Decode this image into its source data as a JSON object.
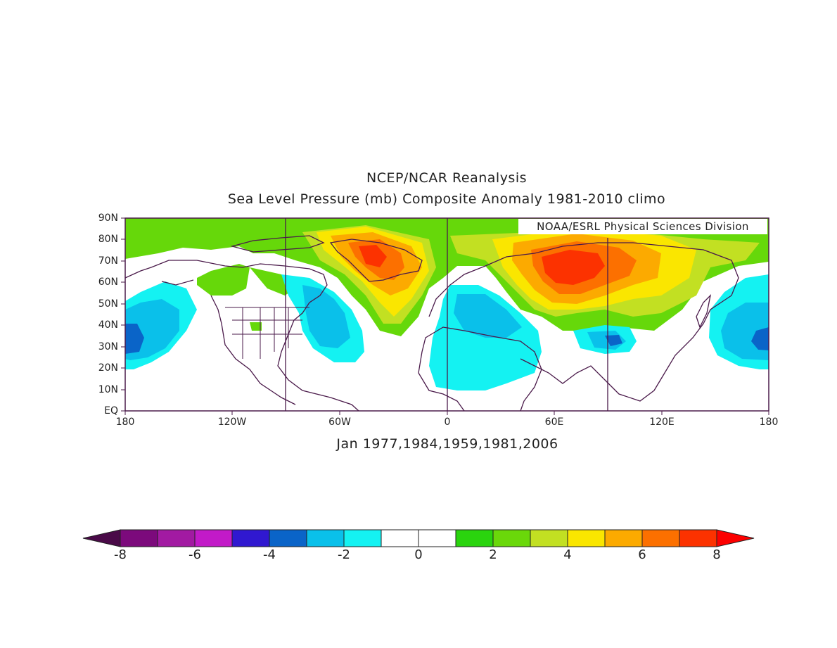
{
  "title_line1": "NCEP/NCAR Reanalysis",
  "title_line2": "Sea Level Pressure (mb) Composite Anomaly 1981-2010 climo",
  "credit": "NOAA/ESRL Physical Sciences Division",
  "subtitle": "Jan 1977,1984,1959,1981,2006",
  "y_labels": [
    "90N",
    "80N",
    "70N",
    "60N",
    "50N",
    "40N",
    "30N",
    "20N",
    "10N",
    "EQ"
  ],
  "x_labels": [
    "180",
    "120W",
    "60W",
    "0",
    "60E",
    "120E",
    "180"
  ],
  "colorbar": {
    "labels": [
      "-8",
      "-6",
      "-4",
      "-2",
      "0",
      "2",
      "4",
      "6",
      "8"
    ],
    "colors": [
      "#4a0a48",
      "#7c0a7c",
      "#a21aa2",
      "#c21ac8",
      "#3018d0",
      "#0a64c8",
      "#0ac0ea",
      "#14f2f2",
      "#ffffff",
      "#ffffff",
      "#2ad40e",
      "#6ad80a",
      "#c2e022",
      "#fae600",
      "#fcaa00",
      "#fc7000",
      "#fc3200",
      "#fc0000"
    ]
  },
  "fill_colors": {
    "light_green": "#66d80a",
    "green": "#2ad40e",
    "yellow_green": "#c2e022",
    "yellow": "#fae600",
    "orange": "#fcaa00",
    "dark_orange": "#fc7000",
    "red": "#fc3200",
    "cyan": "#14f2f2",
    "light_blue": "#0ac0ea",
    "blue": "#0a64c8",
    "coast": "#4a1a4a"
  }
}
